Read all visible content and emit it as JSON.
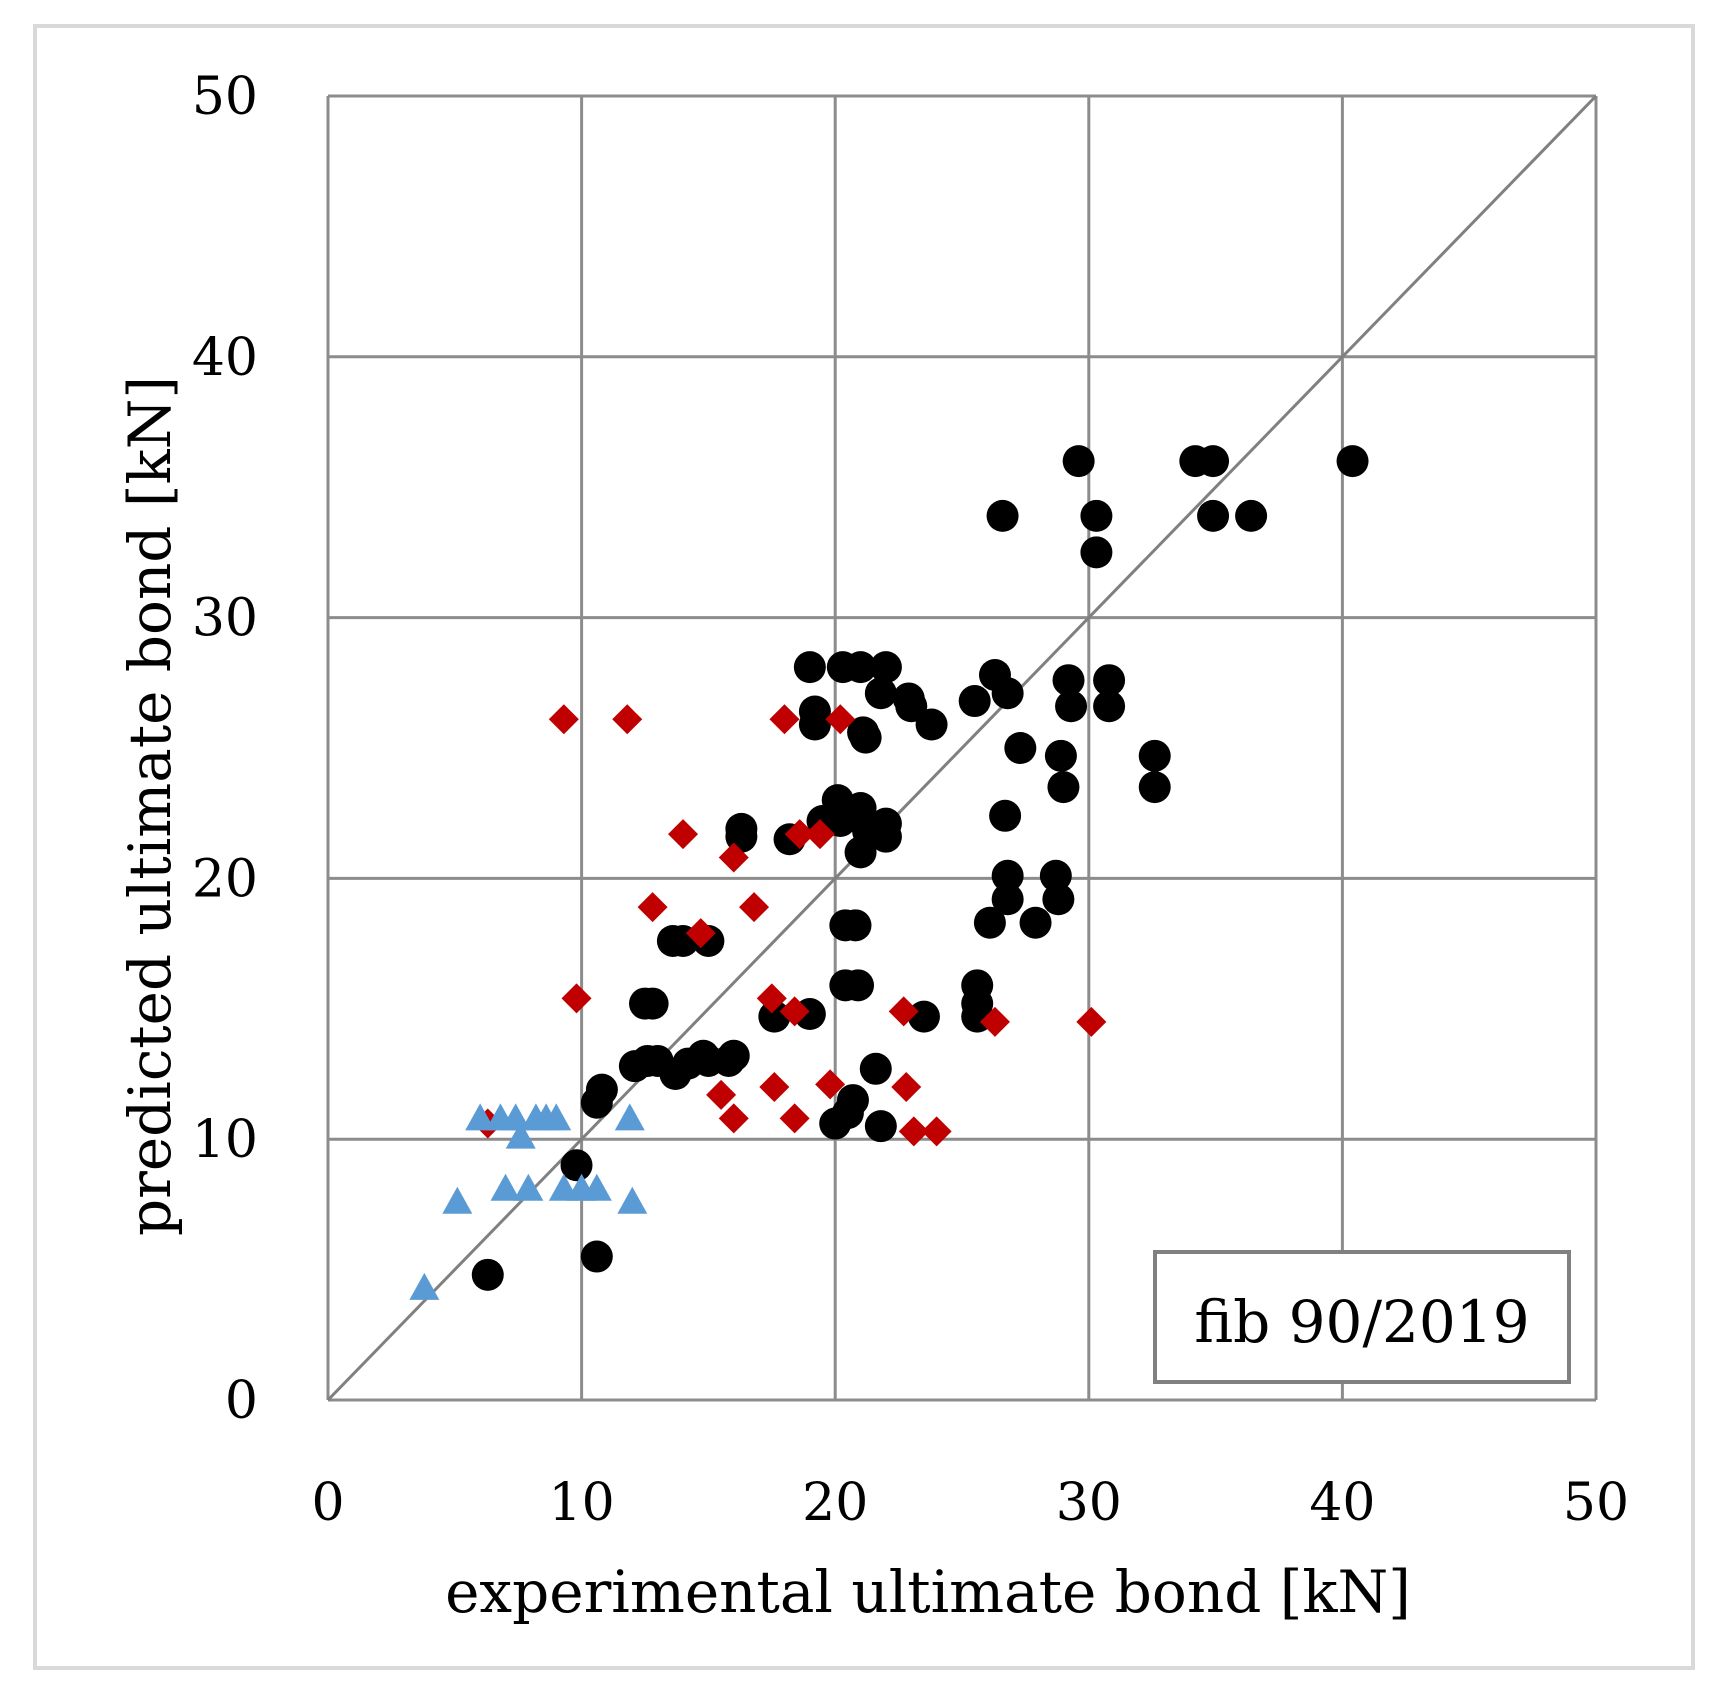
{
  "colors": {
    "black_series": "#000000",
    "red_series": "#c00000",
    "blue_series": "#5b9bd5",
    "grid": "#8c8c8c",
    "diagonal": "#808080",
    "frame": "#d9d9d9"
  },
  "chart_data": {
    "type": "scatter",
    "xlabel": "experimental ultimate bond [kN]",
    "ylabel": "predicted ultimate bond [kN]",
    "xlim": [
      0,
      50
    ],
    "ylim": [
      0,
      50
    ],
    "x_ticks": [
      0,
      10,
      20,
      30,
      40,
      50
    ],
    "y_ticks": [
      0,
      10,
      20,
      30,
      40,
      50
    ],
    "x_tick_labels": [
      "0",
      "10",
      "20",
      "30",
      "40",
      "50"
    ],
    "y_tick_labels": [
      "0",
      "10",
      "20",
      "30",
      "40",
      "50"
    ],
    "grid": true,
    "annotation": "fib 90/2019",
    "reference_line": {
      "x": [
        0,
        50
      ],
      "y": [
        0,
        50
      ]
    },
    "series": [
      {
        "name": "circles",
        "marker": "circle",
        "color": "#000000",
        "points": [
          [
            6.3,
            4.8
          ],
          [
            9.8,
            9.0
          ],
          [
            10.6,
            5.5
          ],
          [
            10.6,
            11.4
          ],
          [
            10.8,
            11.9
          ],
          [
            12.1,
            12.8
          ],
          [
            12.5,
            15.2
          ],
          [
            12.8,
            15.2
          ],
          [
            12.6,
            13.0
          ],
          [
            13.0,
            13.0
          ],
          [
            13.6,
            17.6
          ],
          [
            14.0,
            17.6
          ],
          [
            13.7,
            12.5
          ],
          [
            14.2,
            12.9
          ],
          [
            14.8,
            13.2
          ],
          [
            15.0,
            17.6
          ],
          [
            15.0,
            13.0
          ],
          [
            15.8,
            13.0
          ],
          [
            16.0,
            13.2
          ],
          [
            16.3,
            21.6
          ],
          [
            16.3,
            21.9
          ],
          [
            17.6,
            14.7
          ],
          [
            18.2,
            21.5
          ],
          [
            19.0,
            28.1
          ],
          [
            19.0,
            14.8
          ],
          [
            19.2,
            26.4
          ],
          [
            19.2,
            25.9
          ],
          [
            19.5,
            22.2
          ],
          [
            20.0,
            10.6
          ],
          [
            20.1,
            23.0
          ],
          [
            20.2,
            22.2
          ],
          [
            20.3,
            28.1
          ],
          [
            20.4,
            18.2
          ],
          [
            20.4,
            15.9
          ],
          [
            20.5,
            11.0
          ],
          [
            20.7,
            11.5
          ],
          [
            20.8,
            18.2
          ],
          [
            20.9,
            15.9
          ],
          [
            21.0,
            28.1
          ],
          [
            21.0,
            21.0
          ],
          [
            21.0,
            22.7
          ],
          [
            21.0,
            22.3
          ],
          [
            21.1,
            25.6
          ],
          [
            21.2,
            25.4
          ],
          [
            21.3,
            21.8
          ],
          [
            21.6,
            12.7
          ],
          [
            21.8,
            27.1
          ],
          [
            21.8,
            10.5
          ],
          [
            22.0,
            28.1
          ],
          [
            22.0,
            22.1
          ],
          [
            22.0,
            21.6
          ],
          [
            22.9,
            26.9
          ],
          [
            23.0,
            26.6
          ],
          [
            23.5,
            14.7
          ],
          [
            23.8,
            25.9
          ],
          [
            25.5,
            26.8
          ],
          [
            25.6,
            15.9
          ],
          [
            25.6,
            15.2
          ],
          [
            25.6,
            14.7
          ],
          [
            26.1,
            18.3
          ],
          [
            26.3,
            27.8
          ],
          [
            26.6,
            33.9
          ],
          [
            26.8,
            27.1
          ],
          [
            26.7,
            22.4
          ],
          [
            26.8,
            20.1
          ],
          [
            26.8,
            19.2
          ],
          [
            27.3,
            25.0
          ],
          [
            27.9,
            18.3
          ],
          [
            28.7,
            20.1
          ],
          [
            28.8,
            19.2
          ],
          [
            28.9,
            24.7
          ],
          [
            29.0,
            23.5
          ],
          [
            29.2,
            27.6
          ],
          [
            29.3,
            26.6
          ],
          [
            29.6,
            36.0
          ],
          [
            30.3,
            33.9
          ],
          [
            30.3,
            32.5
          ],
          [
            30.8,
            27.6
          ],
          [
            30.8,
            26.6
          ],
          [
            32.6,
            24.7
          ],
          [
            32.6,
            23.5
          ],
          [
            34.2,
            36.0
          ],
          [
            34.9,
            36.0
          ],
          [
            34.9,
            33.9
          ],
          [
            36.4,
            33.9
          ],
          [
            40.4,
            36.0
          ]
        ]
      },
      {
        "name": "diamonds",
        "marker": "diamond",
        "color": "#c00000",
        "points": [
          [
            6.3,
            10.6
          ],
          [
            9.3,
            26.1
          ],
          [
            9.8,
            15.4
          ],
          [
            11.8,
            26.1
          ],
          [
            12.8,
            18.9
          ],
          [
            14.0,
            21.7
          ],
          [
            14.7,
            17.9
          ],
          [
            15.5,
            11.7
          ],
          [
            16.0,
            10.8
          ],
          [
            16.0,
            20.8
          ],
          [
            16.8,
            18.9
          ],
          [
            17.5,
            15.4
          ],
          [
            17.6,
            12.0
          ],
          [
            18.0,
            26.1
          ],
          [
            18.4,
            10.8
          ],
          [
            18.4,
            14.9
          ],
          [
            18.6,
            21.7
          ],
          [
            19.4,
            21.7
          ],
          [
            19.8,
            12.1
          ],
          [
            20.2,
            26.1
          ],
          [
            22.7,
            14.9
          ],
          [
            22.8,
            12.0
          ],
          [
            23.1,
            10.3
          ],
          [
            24.0,
            10.3
          ],
          [
            26.3,
            14.5
          ],
          [
            30.1,
            14.5
          ]
        ]
      },
      {
        "name": "triangles",
        "marker": "triangle",
        "color": "#5b9bd5",
        "points": [
          [
            3.8,
            4.3
          ],
          [
            5.1,
            7.6
          ],
          [
            6.0,
            10.8
          ],
          [
            6.8,
            10.8
          ],
          [
            7.0,
            8.1
          ],
          [
            7.4,
            10.8
          ],
          [
            7.6,
            10.1
          ],
          [
            7.9,
            8.1
          ],
          [
            8.2,
            10.8
          ],
          [
            8.6,
            10.8
          ],
          [
            9.0,
            10.8
          ],
          [
            9.3,
            8.1
          ],
          [
            10.0,
            8.1
          ],
          [
            10.6,
            8.1
          ],
          [
            11.9,
            10.8
          ],
          [
            12.0,
            7.6
          ]
        ]
      }
    ]
  }
}
